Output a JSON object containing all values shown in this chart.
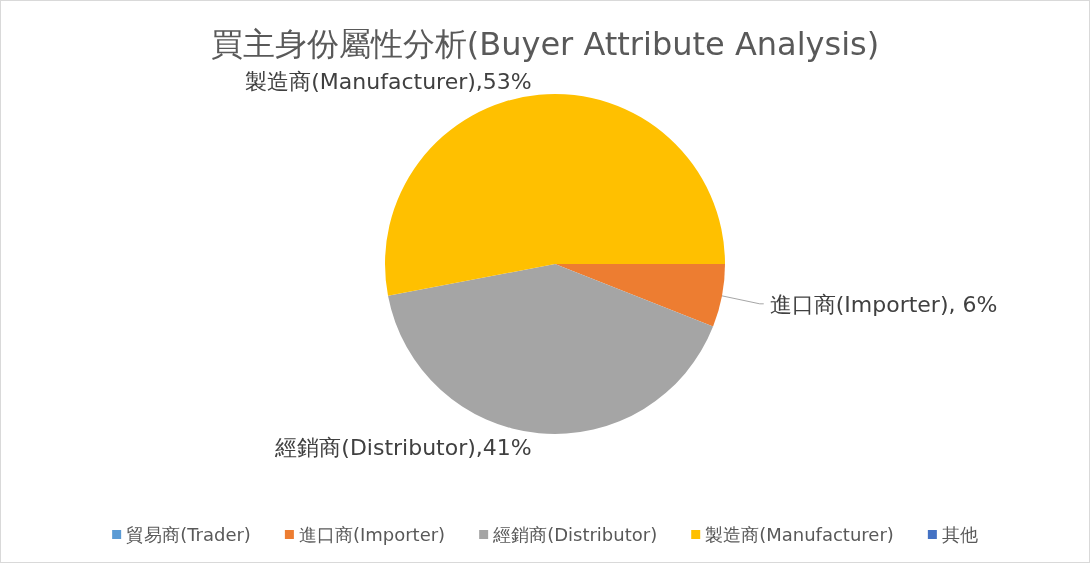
{
  "chart_data": {
    "type": "pie",
    "title": "買主身份屬性分析(Buyer Attribute Analysis)",
    "categories": [
      "貿易商(Trader)",
      "進口商(Importer)",
      "經銷商(Distributor)",
      "製造商(Manufacturer)",
      "其他"
    ],
    "values": [
      0,
      6,
      41,
      53,
      0
    ],
    "colors": [
      "#5b9bd5",
      "#ed7d31",
      "#a5a5a5",
      "#ffc000",
      "#4472c4"
    ],
    "value_labels": [
      null,
      "進口商(Importer), 6%",
      "經銷商(Distributor),41%",
      "製造商(Manufacturer),53%",
      null
    ],
    "legend": "bottom"
  }
}
